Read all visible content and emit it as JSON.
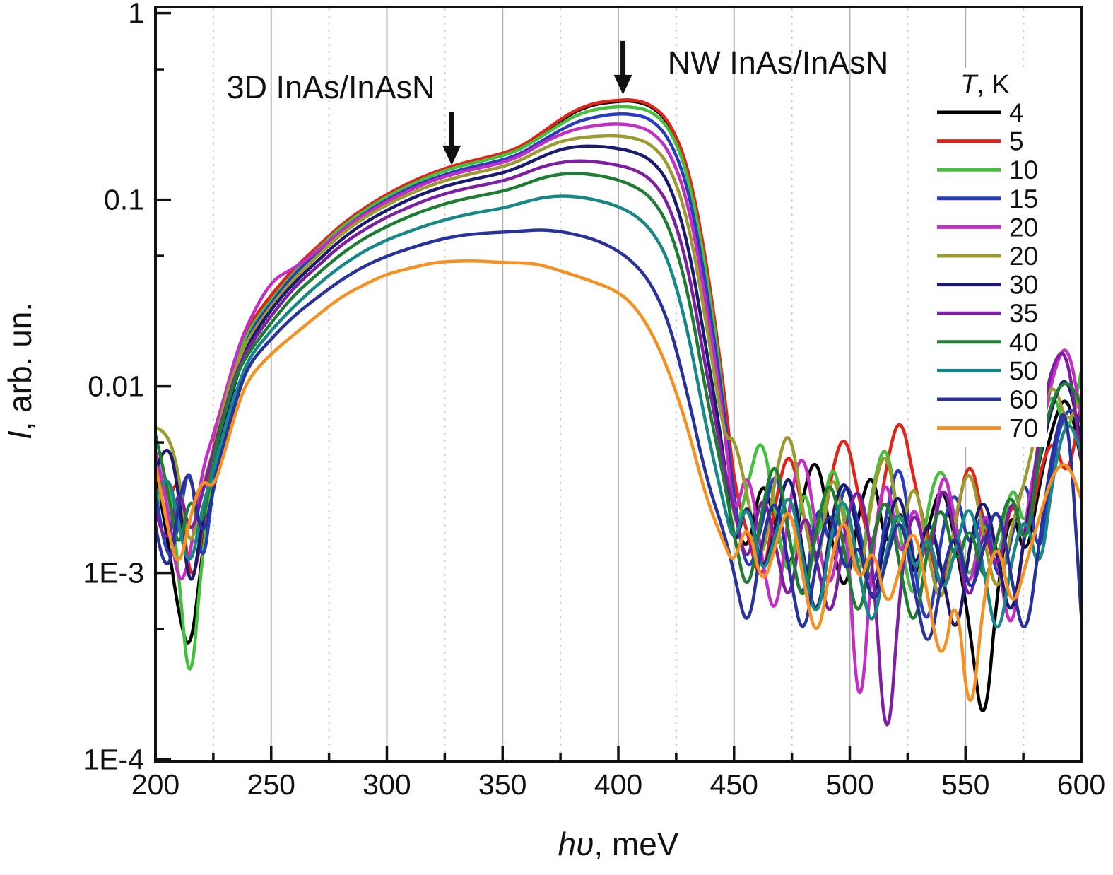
{
  "figure": {
    "x_axis": {
      "label_italic": "hυ",
      "label_rest": ", meV",
      "min": 200,
      "max": 600,
      "major_step": 50,
      "minor_step": 25,
      "tick_labels": [
        "200",
        "250",
        "300",
        "350",
        "400",
        "450",
        "500",
        "550",
        "600"
      ]
    },
    "y_axis": {
      "label_italic": "I",
      "label_rest": ", arb. un.",
      "scale": "log",
      "ticks": [
        {
          "label": "1",
          "value": 1
        },
        {
          "label": "0.1",
          "value": 0.1
        },
        {
          "label": "0.01",
          "value": 0.01
        },
        {
          "label": "1E-3",
          "value": 0.001
        },
        {
          "label": "1E-4",
          "value": 0.0001
        }
      ],
      "minor_tick_values": [
        0.5,
        0.05,
        0.005,
        0.0005
      ]
    },
    "annotations": [
      {
        "text": "3D InAs/InAsN",
        "text_x_mev": 276,
        "text_v": 0.45,
        "arrow_x_mev": 328,
        "arrow_tail_v": 0.295,
        "arrow_tip_v": 0.153
      },
      {
        "text": "NW InAs/InAsN",
        "text_x_mev": 469,
        "text_v": 0.6,
        "arrow_x_mev": 402,
        "arrow_tail_v": 0.71,
        "arrow_tip_v": 0.366
      }
    ]
  },
  "legend": {
    "title_italic": "T",
    "title_rest": ", K",
    "items": [
      {
        "label": "4",
        "color": "#000000"
      },
      {
        "label": "5",
        "color": "#e2231a"
      },
      {
        "label": "10",
        "color": "#44c03c"
      },
      {
        "label": "15",
        "color": "#2a3cbe"
      },
      {
        "label": "20",
        "color": "#c32fc3"
      },
      {
        "label": "20",
        "color": "#9b9b30"
      },
      {
        "label": "30",
        "color": "#1a1a6e"
      },
      {
        "label": "35",
        "color": "#7d1fa0"
      },
      {
        "label": "40",
        "color": "#1e7d32"
      },
      {
        "label": "50",
        "color": "#178787"
      },
      {
        "label": "60",
        "color": "#28329b"
      },
      {
        "label": "70",
        "color": "#f59122"
      }
    ]
  },
  "chart_data": {
    "type": "line",
    "title": "",
    "xlabel": "hυ, meV",
    "ylabel": "I, arb. un.",
    "x_range": [
      200,
      600
    ],
    "y_range": [
      0.0001,
      1
    ],
    "y_scale": "log",
    "grid": "vertical-only",
    "legend_position": "inside-right",
    "x": [
      200,
      205,
      210,
      215,
      220,
      225,
      230,
      235,
      240,
      250,
      260,
      270,
      280,
      290,
      300,
      310,
      320,
      330,
      340,
      350,
      358,
      366,
      374,
      382,
      390,
      398,
      406,
      414,
      422,
      430,
      438,
      446,
      450,
      456,
      462,
      468,
      474,
      480,
      486,
      492,
      498,
      504,
      510,
      516,
      522,
      528,
      534,
      540,
      546,
      552,
      558,
      564,
      570,
      576,
      582,
      588,
      594,
      600
    ],
    "series": [
      {
        "name": "4 K",
        "temperature_K": 4,
        "color": "#000000",
        "y": [
          0.0035,
          0.0016,
          0.0006,
          0.00035,
          0.0012,
          0.004,
          0.0075,
          0.012,
          0.02,
          0.03,
          0.042,
          0.055,
          0.072,
          0.088,
          0.105,
          0.122,
          0.138,
          0.152,
          0.163,
          0.175,
          0.19,
          0.22,
          0.26,
          0.3,
          0.325,
          0.335,
          0.34,
          0.32,
          0.26,
          0.15,
          0.045,
          0.008,
          0.002,
          0.0012,
          0.0035,
          0.0018,
          0.0009,
          0.0028,
          0.0045,
          0.0015,
          0.0007,
          0.0022,
          0.0038,
          0.0012,
          0.0026,
          0.0008,
          0.0018,
          0.0032,
          0.0014,
          0.0005,
          0.00012,
          0.0009,
          0.0024,
          0.0011,
          0.003,
          0.0065,
          0.0095,
          0.004
        ]
      },
      {
        "name": "5 K",
        "temperature_K": 5,
        "color": "#e2231a",
        "y": [
          0.004,
          0.0022,
          0.0035,
          0.0008,
          0.0015,
          0.005,
          0.009,
          0.014,
          0.021,
          0.031,
          0.043,
          0.056,
          0.073,
          0.09,
          0.107,
          0.124,
          0.14,
          0.154,
          0.165,
          0.177,
          0.193,
          0.224,
          0.265,
          0.305,
          0.33,
          0.34,
          0.345,
          0.325,
          0.265,
          0.155,
          0.048,
          0.009,
          0.003,
          0.0016,
          0.0008,
          0.0025,
          0.005,
          0.002,
          0.001,
          0.0035,
          0.006,
          0.0025,
          0.0012,
          0.004,
          0.0075,
          0.003,
          0.0015,
          0.0007,
          0.002,
          0.0045,
          0.0018,
          0.0009,
          0.0028,
          0.0013,
          0.0035,
          0.0055,
          0.003,
          0.008
        ]
      },
      {
        "name": "10 K",
        "temperature_K": 10,
        "color": "#44c03c",
        "y": [
          0.002,
          0.0045,
          0.001,
          0.0002,
          0.0012,
          0.0035,
          0.008,
          0.013,
          0.02,
          0.029,
          0.041,
          0.054,
          0.071,
          0.087,
          0.104,
          0.12,
          0.136,
          0.15,
          0.16,
          0.172,
          0.187,
          0.215,
          0.25,
          0.285,
          0.305,
          0.315,
          0.315,
          0.3,
          0.245,
          0.14,
          0.042,
          0.008,
          0.0015,
          0.003,
          0.006,
          0.002,
          0.0008,
          0.0035,
          0.0012,
          0.0045,
          0.002,
          0.0009,
          0.003,
          0.0055,
          0.0015,
          0.0006,
          0.0025,
          0.004,
          0.0018,
          0.0008,
          0.0022,
          0.001,
          0.0035,
          0.0015,
          0.006,
          0.01,
          0.005,
          0.012
        ]
      },
      {
        "name": "15 K",
        "temperature_K": 15,
        "color": "#2a3cbe",
        "y": [
          0.0028,
          0.001,
          0.0018,
          0.0045,
          0.0009,
          0.003,
          0.0065,
          0.011,
          0.019,
          0.028,
          0.04,
          0.052,
          0.068,
          0.084,
          0.1,
          0.116,
          0.13,
          0.143,
          0.153,
          0.163,
          0.177,
          0.203,
          0.233,
          0.262,
          0.278,
          0.288,
          0.288,
          0.272,
          0.215,
          0.12,
          0.035,
          0.007,
          0.0025,
          0.0009,
          0.0018,
          0.004,
          0.0015,
          0.0006,
          0.0028,
          0.0012,
          0.0035,
          0.0018,
          0.0007,
          0.0022,
          0.0045,
          0.001,
          0.00045,
          0.0018,
          0.003,
          0.0012,
          0.0025,
          0.0008,
          0.0015,
          0.0038,
          0.001,
          0.0045,
          0.008,
          0.0065
        ]
      },
      {
        "name": "20 K",
        "temperature_K": 20,
        "color": "#c32fc3",
        "y": [
          0.0045,
          0.0025,
          0.0008,
          0.0012,
          0.0035,
          0.0055,
          0.009,
          0.015,
          0.022,
          0.037,
          0.043,
          0.053,
          0.068,
          0.083,
          0.098,
          0.113,
          0.127,
          0.139,
          0.148,
          0.158,
          0.172,
          0.197,
          0.222,
          0.24,
          0.25,
          0.256,
          0.252,
          0.235,
          0.185,
          0.1,
          0.028,
          0.006,
          0.0018,
          0.004,
          0.0012,
          0.0005,
          0.0025,
          0.005,
          0.0015,
          0.0007,
          0.003,
          0.00011,
          0.0015,
          0.0038,
          0.001,
          0.0028,
          0.0009,
          0.0042,
          0.0018,
          0.0007,
          0.0025,
          0.0012,
          0.0004,
          0.002,
          0.005,
          0.012,
          0.018,
          0.007
        ]
      },
      {
        "name": "20 K",
        "temperature_K": 20,
        "color": "#9b9b30",
        "y": [
          0.006,
          0.0058,
          0.0035,
          0.0012,
          0.0028,
          0.0045,
          0.0085,
          0.013,
          0.018,
          0.027,
          0.038,
          0.05,
          0.065,
          0.08,
          0.094,
          0.108,
          0.121,
          0.132,
          0.141,
          0.15,
          0.163,
          0.184,
          0.204,
          0.214,
          0.219,
          0.221,
          0.216,
          0.2,
          0.155,
          0.08,
          0.022,
          0.005,
          0.0055,
          0.0025,
          0.001,
          0.0035,
          0.0065,
          0.002,
          0.0009,
          0.004,
          0.0018,
          0.0008,
          0.0028,
          0.005,
          0.0015,
          0.0035,
          0.0012,
          0.0006,
          0.0022,
          0.004,
          0.0015,
          0.0007,
          0.0018,
          0.0032,
          0.007,
          0.011,
          0.006,
          0.009
        ]
      },
      {
        "name": "30 K",
        "temperature_K": 30,
        "color": "#1a1a6e",
        "y": [
          0.0035,
          0.0055,
          0.0028,
          0.0007,
          0.0018,
          0.0038,
          0.007,
          0.011,
          0.017,
          0.026,
          0.036,
          0.047,
          0.061,
          0.075,
          0.088,
          0.101,
          0.113,
          0.123,
          0.131,
          0.139,
          0.151,
          0.168,
          0.185,
          0.193,
          0.194,
          0.19,
          0.182,
          0.165,
          0.125,
          0.06,
          0.016,
          0.004,
          0.0012,
          0.0028,
          0.0009,
          0.0018,
          0.004,
          0.0012,
          0.0005,
          0.002,
          0.0035,
          0.0015,
          0.0006,
          0.0018,
          0.003,
          0.0009,
          0.0022,
          0.001,
          0.0004,
          0.0015,
          0.0028,
          0.0012,
          0.0005,
          0.0018,
          0.004,
          0.0085,
          0.012,
          0.005
        ]
      },
      {
        "name": "35 K",
        "temperature_K": 35,
        "color": "#7d1fa0",
        "y": [
          0.0022,
          0.0012,
          0.0032,
          0.0015,
          0.0026,
          0.0045,
          0.0075,
          0.012,
          0.016,
          0.024,
          0.034,
          0.044,
          0.057,
          0.069,
          0.081,
          0.092,
          0.103,
          0.112,
          0.119,
          0.126,
          0.136,
          0.149,
          0.158,
          0.162,
          0.16,
          0.155,
          0.147,
          0.13,
          0.095,
          0.045,
          0.012,
          0.0035,
          0.0022,
          0.001,
          0.003,
          0.0014,
          0.0006,
          0.0025,
          0.0011,
          0.0005,
          0.0018,
          0.0032,
          0.0012,
          8e-05,
          0.001,
          0.0025,
          0.001,
          0.0035,
          0.0015,
          0.0006,
          0.002,
          0.0009,
          0.003,
          0.0012,
          0.006,
          0.014,
          0.016,
          0.004
        ]
      },
      {
        "name": "40 K",
        "temperature_K": 40,
        "color": "#1e7d32",
        "y": [
          0.0055,
          0.003,
          0.0012,
          0.0028,
          0.0016,
          0.0042,
          0.0072,
          0.0115,
          0.015,
          0.022,
          0.031,
          0.04,
          0.051,
          0.062,
          0.072,
          0.082,
          0.091,
          0.099,
          0.105,
          0.111,
          0.119,
          0.13,
          0.137,
          0.139,
          0.136,
          0.13,
          0.12,
          0.104,
          0.073,
          0.033,
          0.009,
          0.003,
          0.0016,
          0.0007,
          0.0022,
          0.0045,
          0.0015,
          0.0006,
          0.0019,
          0.0035,
          0.0012,
          0.0005,
          0.0016,
          0.0028,
          0.001,
          0.00045,
          0.0015,
          0.0025,
          0.001,
          0.002,
          0.0008,
          0.0016,
          0.003,
          0.0012,
          0.0045,
          0.009,
          0.011,
          0.008
        ]
      },
      {
        "name": "50 K",
        "temperature_K": 50,
        "color": "#178787",
        "y": [
          0.0025,
          0.0038,
          0.0018,
          0.001,
          0.0022,
          0.0035,
          0.006,
          0.0095,
          0.014,
          0.02,
          0.027,
          0.035,
          0.044,
          0.053,
          0.061,
          0.068,
          0.075,
          0.081,
          0.086,
          0.09,
          0.096,
          0.102,
          0.105,
          0.104,
          0.1,
          0.094,
          0.085,
          0.07,
          0.047,
          0.02,
          0.006,
          0.0022,
          0.0014,
          0.0026,
          0.0009,
          0.0016,
          0.003,
          0.0011,
          0.0005,
          0.0017,
          0.0028,
          0.001,
          0.00045,
          0.0014,
          0.0024,
          0.0009,
          0.0018,
          0.0007,
          0.0014,
          0.0026,
          0.001,
          0.0004,
          0.0012,
          0.0022,
          0.0009,
          0.0035,
          0.007,
          0.0045
        ]
      },
      {
        "name": "60 K",
        "temperature_K": 60,
        "color": "#28329b",
        "y": [
          0.0018,
          0.0008,
          0.0025,
          0.0038,
          0.0014,
          0.0028,
          0.0052,
          0.0085,
          0.013,
          0.018,
          0.024,
          0.03,
          0.037,
          0.044,
          0.05,
          0.055,
          0.06,
          0.064,
          0.066,
          0.067,
          0.068,
          0.069,
          0.068,
          0.065,
          0.061,
          0.055,
          0.047,
          0.036,
          0.022,
          0.009,
          0.0032,
          0.0016,
          0.001,
          0.00045,
          0.0015,
          0.0028,
          0.001,
          0.0004,
          0.0013,
          0.0024,
          0.0009,
          0.0016,
          0.0006,
          0.0012,
          0.0022,
          0.0008,
          0.00035,
          0.001,
          0.0018,
          0.0007,
          0.0014,
          0.0025,
          0.0009,
          0.0004,
          0.0015,
          0.005,
          0.009,
          0.0006
        ]
      },
      {
        "name": "70 K",
        "temperature_K": 70,
        "color": "#f59122",
        "y": [
          0.0038,
          0.0018,
          0.001,
          0.002,
          0.0032,
          0.0028,
          0.0045,
          0.0075,
          0.011,
          0.015,
          0.019,
          0.024,
          0.03,
          0.035,
          0.04,
          0.043,
          0.046,
          0.047,
          0.047,
          0.046,
          0.046,
          0.045,
          0.042,
          0.039,
          0.036,
          0.033,
          0.028,
          0.02,
          0.012,
          0.006,
          0.0025,
          0.0014,
          0.0011,
          0.002,
          0.0008,
          0.0014,
          0.0025,
          0.0009,
          0.0004,
          0.0012,
          0.0022,
          0.0008,
          0.0015,
          0.0006,
          0.0011,
          0.0019,
          0.0007,
          0.0003,
          0.0009,
          0.00013,
          0.0008,
          0.0016,
          0.0006,
          0.0011,
          0.002,
          0.0035,
          0.004,
          0.0025
        ]
      }
    ]
  }
}
